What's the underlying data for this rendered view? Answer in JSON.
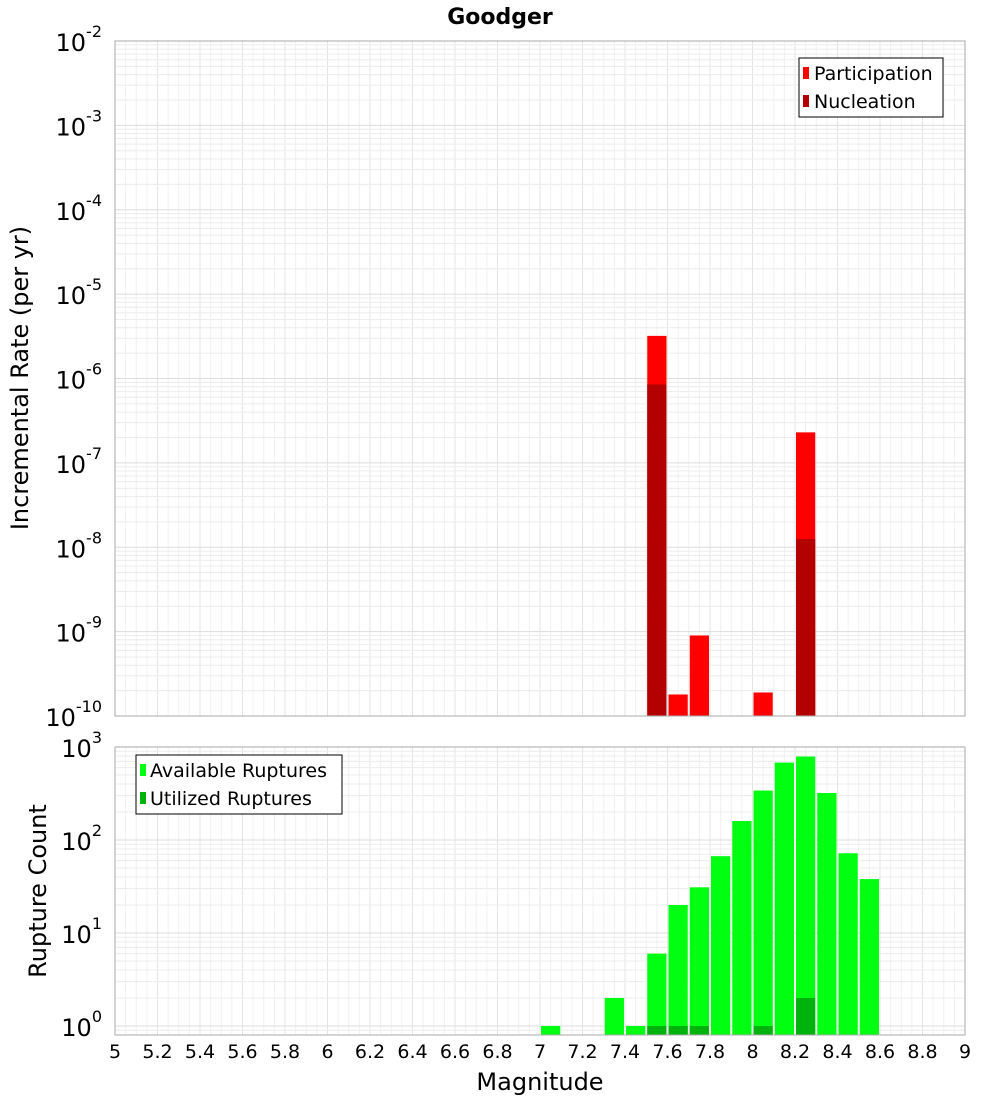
{
  "chart_data": [
    {
      "type": "bar",
      "title": "Goodger",
      "ylabel": "Incremental Rate (per yr)",
      "xlabel": "",
      "y_scale": "log",
      "ylim": [
        1e-10,
        0.01
      ],
      "xlim": [
        5,
        9
      ],
      "bar_width": 0.1,
      "y_ticks": [
        {
          "base": "10",
          "exp": "-10",
          "value": 1e-10
        },
        {
          "base": "10",
          "exp": "-9",
          "value": 1e-09
        },
        {
          "base": "10",
          "exp": "-8",
          "value": 1e-08
        },
        {
          "base": "10",
          "exp": "-7",
          "value": 1e-07
        },
        {
          "base": "10",
          "exp": "-6",
          "value": 1e-06
        },
        {
          "base": "10",
          "exp": "-5",
          "value": 1e-05
        },
        {
          "base": "10",
          "exp": "-4",
          "value": 0.0001
        },
        {
          "base": "10",
          "exp": "-3",
          "value": 0.001
        },
        {
          "base": "10",
          "exp": "-2",
          "value": 0.01
        }
      ],
      "legend": {
        "position": "top-right"
      },
      "series": [
        {
          "name": "Participation",
          "color": "#ff0000",
          "points": [
            {
              "x": 7.55,
              "y": 3.2e-06
            },
            {
              "x": 7.65,
              "y": 1.8e-10
            },
            {
              "x": 7.75,
              "y": 9e-10
            },
            {
              "x": 8.05,
              "y": 1.9e-10
            },
            {
              "x": 8.25,
              "y": 2.3e-07
            }
          ]
        },
        {
          "name": "Nucleation",
          "color": "#b30000",
          "points": [
            {
              "x": 7.55,
              "y": 8.5e-07
            },
            {
              "x": 8.25,
              "y": 1.25e-08
            }
          ]
        }
      ]
    },
    {
      "type": "bar",
      "title": "",
      "ylabel": "Rupture Count",
      "xlabel": "Magnitude",
      "y_scale": "log",
      "ylim": [
        0.8,
        1000
      ],
      "xlim": [
        5,
        9
      ],
      "bar_width": 0.1,
      "x_ticks": [
        "5",
        "5.2",
        "5.4",
        "5.6",
        "5.8",
        "6",
        "6.2",
        "6.4",
        "6.6",
        "6.8",
        "7",
        "7.2",
        "7.4",
        "7.6",
        "7.8",
        "8",
        "8.2",
        "8.4",
        "8.6",
        "8.8",
        "9"
      ],
      "y_ticks": [
        {
          "base": "10",
          "exp": "0",
          "value": 1
        },
        {
          "base": "10",
          "exp": "1",
          "value": 10
        },
        {
          "base": "10",
          "exp": "2",
          "value": 100
        },
        {
          "base": "10",
          "exp": "3",
          "value": 1000
        }
      ],
      "legend": {
        "position": "top-left"
      },
      "series": [
        {
          "name": "Available Ruptures",
          "color": "#00ff11",
          "points": [
            {
              "x": 7.05,
              "y": 1
            },
            {
              "x": 7.35,
              "y": 2
            },
            {
              "x": 7.45,
              "y": 1
            },
            {
              "x": 7.55,
              "y": 6
            },
            {
              "x": 7.65,
              "y": 20
            },
            {
              "x": 7.75,
              "y": 31
            },
            {
              "x": 7.85,
              "y": 67
            },
            {
              "x": 7.95,
              "y": 160
            },
            {
              "x": 8.05,
              "y": 340
            },
            {
              "x": 8.15,
              "y": 680
            },
            {
              "x": 8.25,
              "y": 790
            },
            {
              "x": 8.35,
              "y": 320
            },
            {
              "x": 8.45,
              "y": 72
            },
            {
              "x": 8.55,
              "y": 38
            }
          ]
        },
        {
          "name": "Utilized Ruptures",
          "color": "#00b30c",
          "points": [
            {
              "x": 7.55,
              "y": 1
            },
            {
              "x": 7.65,
              "y": 1
            },
            {
              "x": 7.75,
              "y": 1
            },
            {
              "x": 8.05,
              "y": 1
            },
            {
              "x": 8.25,
              "y": 2
            }
          ]
        }
      ]
    }
  ]
}
